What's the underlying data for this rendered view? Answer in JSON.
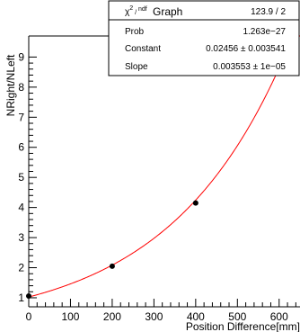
{
  "chart_data": {
    "type": "scatter",
    "title": "Graph",
    "xlabel": "Position Difference[mm]",
    "ylabel": "NRight/NLeft",
    "xlim": [
      0,
      650
    ],
    "ylim": [
      0.7,
      9.7
    ],
    "x_ticks": [
      0,
      100,
      200,
      300,
      400,
      500,
      600
    ],
    "x_tick_labels": [
      "0",
      "100",
      "200",
      "300",
      "400",
      "500",
      "600"
    ],
    "y_ticks": [
      1,
      2,
      3,
      4,
      5,
      6,
      7,
      8,
      9
    ],
    "y_tick_labels": [
      "1",
      "2",
      "3",
      "4",
      "5",
      "6",
      "7",
      "8",
      "9"
    ],
    "grid": false,
    "series": [
      {
        "x": [
          0,
          200,
          400,
          600
        ],
        "y": [
          1.06,
          2.05,
          4.15,
          8.9
        ],
        "marker": "circle",
        "color": "#000000"
      }
    ],
    "fit": {
      "function": "exp(Constant + Slope*x)",
      "color": "#ff0000",
      "constant": 0.02456,
      "slope": 0.003553
    },
    "stats_box": {
      "title": "Graph",
      "rows": [
        {
          "label_main": "χ",
          "label_sup1": "2",
          "label_mid": " / ",
          "label_sup2": "ndf",
          "value": "123.9 / 2"
        },
        {
          "label": "Prob",
          "value": "1.263e−27"
        },
        {
          "label": "Constant",
          "value": "0.02456 ± 0.003541"
        },
        {
          "label": "Slope",
          "value": "0.003553 ± 1e−05"
        }
      ]
    }
  }
}
